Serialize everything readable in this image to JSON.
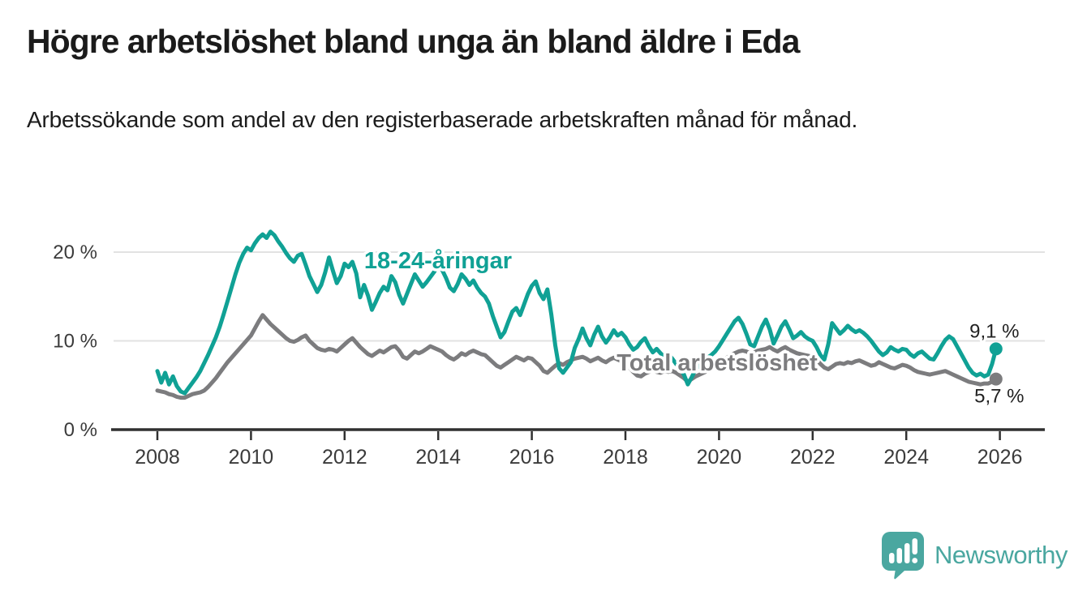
{
  "header": {
    "title": "Högre arbetslöshet bland unga än bland äldre i Eda",
    "subtitle": "Arbetssökande som andel av den registerbaserade arbetskraften månad för månad."
  },
  "footer": {
    "brand": "Newsworthy",
    "brand_color": "#4aa7a0"
  },
  "chart_data": {
    "type": "line",
    "title": "Högre arbetslöshet bland unga än bland äldre i Eda",
    "subtitle": "Arbetssökande som andel av den registerbaserade arbetskraften månad för månad.",
    "x_unit": "month",
    "x_start": "2008-01",
    "x_end": "2025-12",
    "frequency": "monthly",
    "grid": "horizontal",
    "legend_position": "inline-labels",
    "ylim": [
      0,
      23
    ],
    "x_tick_labels": [
      "2008",
      "2010",
      "2012",
      "2014",
      "2016",
      "2018",
      "2020",
      "2022",
      "2024",
      "2026"
    ],
    "y_ticks": [
      {
        "value": 0,
        "label": "0 %"
      },
      {
        "value": 10,
        "label": "10 %"
      },
      {
        "value": 20,
        "label": "20 %"
      }
    ],
    "colors": {
      "grid": "#e2e2e2",
      "axis": "#303030",
      "tick_label": "#3b3b3b",
      "value_label": "#222222"
    },
    "series": [
      {
        "name": "18-24-åringar",
        "color": "#10a195",
        "end_label": "9,1 %",
        "end_value": 9.1,
        "values": [
          6.6,
          5.3,
          6.4,
          5.1,
          6.0,
          4.9,
          4.3,
          4.1,
          4.7,
          5.3,
          5.9,
          6.6,
          7.5,
          8.4,
          9.4,
          10.4,
          11.6,
          13.0,
          14.5,
          16.0,
          17.5,
          18.8,
          19.8,
          20.5,
          20.2,
          21.0,
          21.6,
          22.0,
          21.6,
          22.3,
          21.9,
          21.2,
          20.6,
          19.9,
          19.3,
          18.9,
          19.6,
          19.8,
          18.6,
          17.3,
          16.4,
          15.5,
          16.3,
          17.7,
          19.4,
          17.9,
          16.5,
          17.3,
          18.7,
          18.3,
          18.9,
          17.6,
          14.9,
          16.3,
          15.1,
          13.5,
          14.4,
          15.4,
          16.1,
          15.7,
          17.3,
          16.6,
          15.2,
          14.2,
          15.3,
          16.4,
          17.5,
          16.8,
          16.1,
          16.6,
          17.2,
          17.8,
          18.5,
          18.0,
          17.1,
          16.0,
          15.6,
          16.4,
          17.5,
          17.0,
          16.3,
          16.8,
          16.0,
          15.4,
          15.0,
          14.2,
          12.8,
          11.6,
          10.4,
          11.0,
          12.2,
          13.3,
          13.7,
          12.9,
          14.1,
          15.3,
          16.2,
          16.7,
          15.4,
          14.7,
          15.8,
          13.0,
          9.5,
          6.9,
          6.4,
          7.0,
          7.6,
          9.2,
          10.2,
          11.4,
          10.3,
          9.5,
          10.7,
          11.6,
          10.5,
          9.8,
          10.4,
          11.2,
          10.6,
          10.9,
          10.4,
          9.6,
          9.0,
          9.3,
          9.9,
          10.3,
          9.4,
          8.7,
          9.1,
          8.6,
          8.2,
          8.5,
          8.0,
          7.4,
          7.0,
          6.2,
          5.1,
          5.9,
          6.8,
          7.3,
          7.8,
          8.1,
          8.4,
          8.8,
          9.4,
          10.1,
          10.8,
          11.5,
          12.2,
          12.6,
          11.9,
          10.8,
          9.6,
          9.4,
          10.5,
          11.6,
          12.4,
          11.3,
          9.7,
          10.6,
          11.6,
          12.2,
          11.3,
          10.3,
          10.6,
          11.0,
          10.5,
          10.2,
          10.0,
          9.3,
          8.4,
          7.9,
          9.6,
          12.0,
          11.4,
          10.8,
          11.2,
          11.7,
          11.3,
          11.0,
          11.2,
          10.9,
          10.5,
          10.0,
          9.4,
          8.8,
          8.4,
          8.7,
          9.3,
          9.0,
          8.8,
          9.1,
          9.0,
          8.5,
          8.2,
          8.6,
          8.8,
          8.4,
          8.0,
          7.9,
          8.6,
          9.4,
          10.1,
          10.5,
          10.2,
          9.4,
          8.6,
          7.8,
          7.0,
          6.4,
          6.1,
          6.3,
          6.0,
          6.2,
          7.4,
          9.1
        ]
      },
      {
        "name": "Total arbetslöshet",
        "color": "#7c7c7e",
        "end_label": "5,7 %",
        "end_value": 5.7,
        "values": [
          4.4,
          4.3,
          4.2,
          4.0,
          3.9,
          3.7,
          3.6,
          3.6,
          3.8,
          4.0,
          4.1,
          4.2,
          4.4,
          4.8,
          5.3,
          5.8,
          6.4,
          7.0,
          7.6,
          8.1,
          8.6,
          9.1,
          9.6,
          10.1,
          10.6,
          11.4,
          12.2,
          12.9,
          12.4,
          11.9,
          11.5,
          11.1,
          10.7,
          10.3,
          10.0,
          9.9,
          10.1,
          10.4,
          10.6,
          10.0,
          9.6,
          9.2,
          9.0,
          8.9,
          9.1,
          9.0,
          8.8,
          9.2,
          9.6,
          10.0,
          10.3,
          9.8,
          9.3,
          8.9,
          8.5,
          8.3,
          8.6,
          8.9,
          8.7,
          9.0,
          9.3,
          9.4,
          8.9,
          8.2,
          8.0,
          8.4,
          8.8,
          8.6,
          8.8,
          9.1,
          9.4,
          9.2,
          9.0,
          8.8,
          8.4,
          8.1,
          7.9,
          8.2,
          8.6,
          8.4,
          8.7,
          8.9,
          8.7,
          8.5,
          8.4,
          8.0,
          7.6,
          7.2,
          7.0,
          7.3,
          7.6,
          7.9,
          8.2,
          8.0,
          7.8,
          8.1,
          8.0,
          7.6,
          7.2,
          6.6,
          6.4,
          6.8,
          7.2,
          7.5,
          7.3,
          7.6,
          7.8,
          8.0,
          8.1,
          8.2,
          8.0,
          7.7,
          7.9,
          8.1,
          7.8,
          7.6,
          7.9,
          8.1,
          7.9,
          7.7,
          7.4,
          7.0,
          6.5,
          6.1,
          6.0,
          6.3,
          6.5,
          6.7,
          6.5,
          6.4,
          6.6,
          6.5,
          6.6,
          6.4,
          6.1,
          5.8,
          5.4,
          5.7,
          6.0,
          6.2,
          6.4,
          6.6,
          6.9,
          7.1,
          7.3,
          7.7,
          8.1,
          8.4,
          8.6,
          8.8,
          8.9,
          8.8,
          8.6,
          8.7,
          8.9,
          9.0,
          9.1,
          9.3,
          9.0,
          8.8,
          9.1,
          9.3,
          9.0,
          8.8,
          8.6,
          8.5,
          8.4,
          8.3,
          8.2,
          7.9,
          7.4,
          7.0,
          6.8,
          7.1,
          7.4,
          7.5,
          7.4,
          7.6,
          7.5,
          7.7,
          7.8,
          7.6,
          7.4,
          7.2,
          7.3,
          7.6,
          7.4,
          7.2,
          7.0,
          6.9,
          7.1,
          7.3,
          7.2,
          7.0,
          6.7,
          6.5,
          6.4,
          6.3,
          6.2,
          6.3,
          6.4,
          6.5,
          6.6,
          6.4,
          6.2,
          6.0,
          5.8,
          5.6,
          5.4,
          5.3,
          5.2,
          5.1,
          5.2,
          5.2,
          5.4,
          5.7
        ]
      }
    ]
  }
}
